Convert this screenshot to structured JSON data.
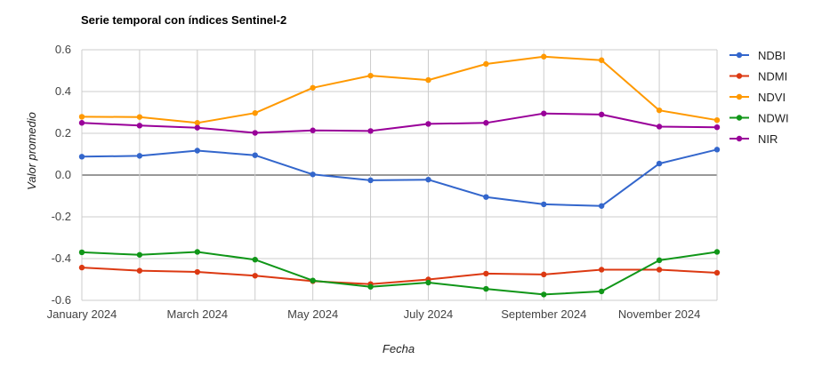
{
  "chart_data": {
    "type": "line",
    "title": "Serie temporal con índices Sentinel-2",
    "xlabel": "Fecha",
    "ylabel": "Valor promedio",
    "ylim": [
      -0.6,
      0.6
    ],
    "yticks": [
      "0.6",
      "0.4",
      "0.2",
      "0.0",
      "-0.2",
      "-0.4",
      "-0.6"
    ],
    "xtick_labels": [
      "January 2024",
      "March 2024",
      "May 2024",
      "July 2024",
      "September 2024",
      "November 2024"
    ],
    "x": [
      "2024-01",
      "2024-02",
      "2024-03",
      "2024-04",
      "2024-05",
      "2024-06",
      "2024-07",
      "2024-08",
      "2024-09",
      "2024-10",
      "2024-11",
      "2024-12"
    ],
    "grid": true,
    "legend_position": "right",
    "series": [
      {
        "name": "NDBI",
        "color": "#3366cc",
        "values": [
          0.088,
          0.092,
          0.117,
          0.095,
          0.003,
          -0.025,
          -0.022,
          -0.105,
          -0.14,
          -0.148,
          0.055,
          0.122
        ]
      },
      {
        "name": "NDMI",
        "color": "#dc3912",
        "values": [
          -0.443,
          -0.458,
          -0.464,
          -0.482,
          -0.508,
          -0.522,
          -0.5,
          -0.472,
          -0.476,
          -0.453,
          -0.453,
          -0.468
        ]
      },
      {
        "name": "NDVI",
        "color": "#ff9900",
        "values": [
          0.279,
          0.278,
          0.25,
          0.297,
          0.418,
          0.476,
          0.455,
          0.532,
          0.567,
          0.55,
          0.31,
          0.263
        ]
      },
      {
        "name": "NDWI",
        "color": "#109618",
        "values": [
          -0.37,
          -0.382,
          -0.368,
          -0.405,
          -0.505,
          -0.535,
          -0.515,
          -0.545,
          -0.572,
          -0.557,
          -0.408,
          -0.368
        ]
      },
      {
        "name": "NIR",
        "color": "#990099",
        "values": [
          0.25,
          0.237,
          0.227,
          0.202,
          0.214,
          0.211,
          0.245,
          0.25,
          0.295,
          0.29,
          0.232,
          0.229
        ]
      }
    ]
  }
}
